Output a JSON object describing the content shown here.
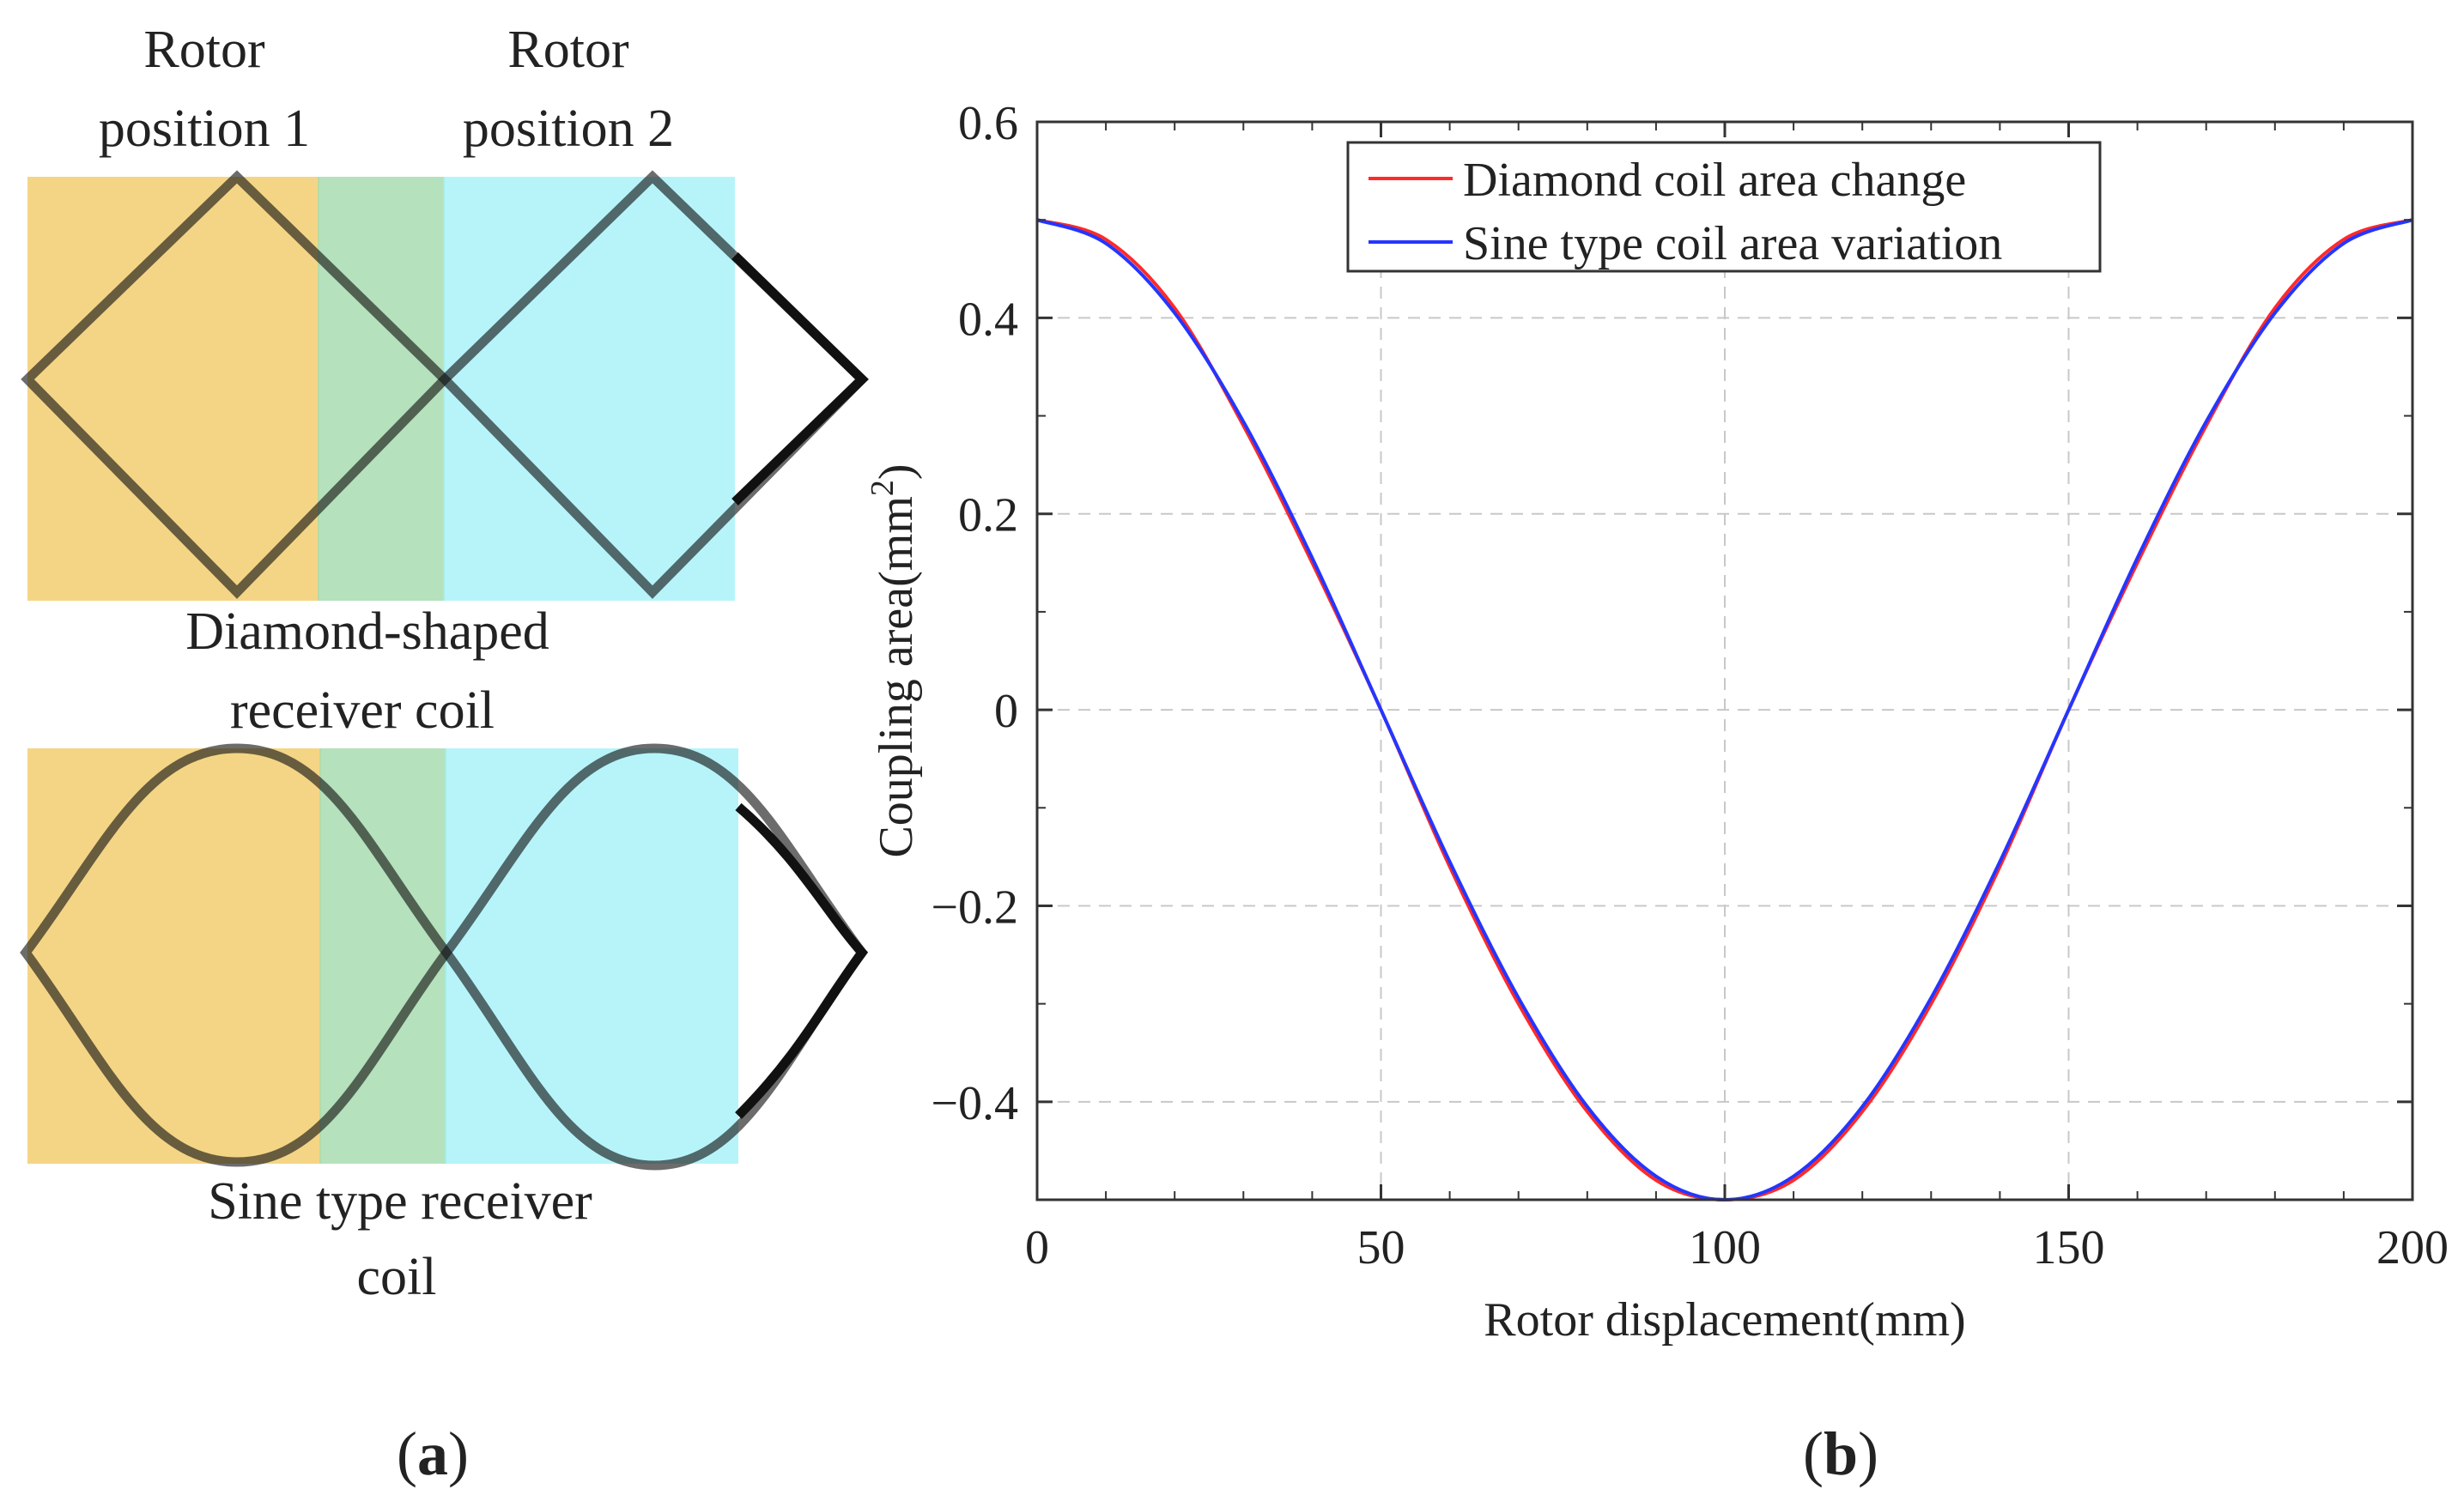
{
  "panel_a": {
    "label_prefix": "(",
    "label_letter": "a",
    "label_suffix": ")",
    "rotor_position_1": [
      "Rotor",
      "position 1"
    ],
    "rotor_position_2": [
      "Rotor",
      "position 2"
    ],
    "diamond_caption": [
      "Diamond-shaped",
      "receiver coil"
    ],
    "sine_caption": [
      "Sine type receiver",
      "coil"
    ],
    "colors": {
      "rotor1_fill": "#f0c75e",
      "overlap_fill": "#a8dcb0",
      "rotor2_fill": "#9ef0f8",
      "coil_stroke": "#111111"
    }
  },
  "panel_b": {
    "label_prefix": "(",
    "label_letter": "b",
    "label_suffix": ")"
  },
  "chart_data": {
    "type": "line",
    "title": "",
    "xlabel": "Rotor displacement(mm)",
    "ylabel": "Coupling area(mm",
    "ylabel_superscript": "2",
    "ylabel_close": ")",
    "xlim": [
      0,
      200
    ],
    "ylim": [
      -0.5,
      0.6
    ],
    "xticks": [
      0,
      50,
      100,
      150,
      200
    ],
    "xtick_labels": [
      "0",
      "50",
      "100",
      "150",
      "200"
    ],
    "yticks": [
      -0.4,
      -0.2,
      0,
      0.2,
      0.4,
      0.6
    ],
    "ytick_labels": [
      "−0.4",
      "−0.2",
      "0",
      "0.2",
      "0.4",
      "0.6"
    ],
    "grid": true,
    "legend_position": "top-center",
    "series": [
      {
        "name": "Diamond coil area change",
        "color": "#ff2a2a",
        "x": [
          0,
          10,
          20,
          30,
          40,
          50,
          60,
          70,
          80,
          90,
          100,
          110,
          120,
          130,
          140,
          150,
          160,
          170,
          180,
          190,
          200
        ],
        "y": [
          0.5,
          0.48,
          0.41,
          0.29,
          0.15,
          0.0,
          -0.16,
          -0.3,
          -0.41,
          -0.48,
          -0.5,
          -0.48,
          -0.41,
          -0.3,
          -0.16,
          0.0,
          0.15,
          0.29,
          0.41,
          0.48,
          0.5
        ]
      },
      {
        "name": "Sine type coil area variation",
        "color": "#2436ff",
        "x": [
          0,
          10,
          20,
          30,
          40,
          50,
          60,
          70,
          80,
          90,
          100,
          110,
          120,
          130,
          140,
          150,
          160,
          170,
          180,
          190,
          200
        ],
        "y": [
          0.5,
          0.476,
          0.405,
          0.294,
          0.155,
          0.0,
          -0.155,
          -0.294,
          -0.405,
          -0.476,
          -0.5,
          -0.476,
          -0.405,
          -0.294,
          -0.155,
          0.0,
          0.155,
          0.294,
          0.405,
          0.476,
          0.5
        ]
      }
    ]
  }
}
